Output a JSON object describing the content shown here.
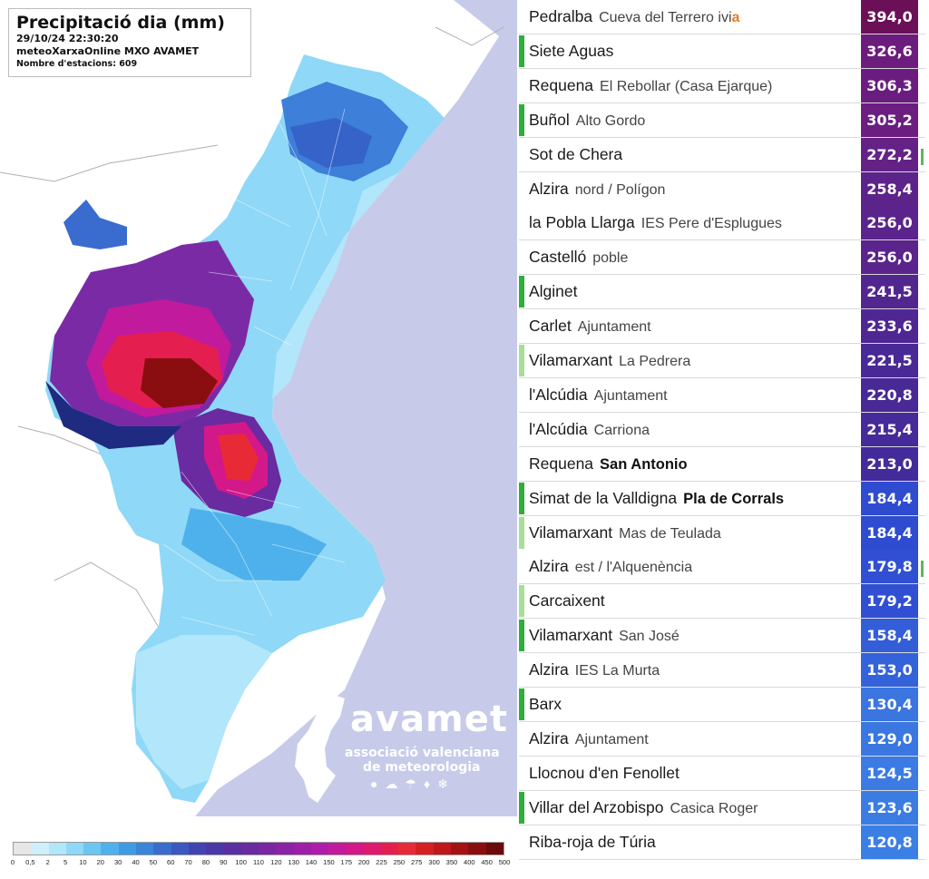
{
  "map": {
    "title": "Precipitació dia (mm)",
    "datetime": "29/10/24 22:30:20",
    "source": "meteoXarxaOnline MXO AVAMET",
    "stations": "Nombre d'estacions: 609",
    "logo": {
      "name": "avamet",
      "line1": "associació valenciana",
      "line2": "de meteorologia"
    },
    "legend": {
      "labels": [
        "0",
        "0,5",
        "2",
        "5",
        "10",
        "20",
        "30",
        "40",
        "50",
        "60",
        "70",
        "80",
        "90",
        "100",
        "110",
        "120",
        "130",
        "140",
        "150",
        "175",
        "200",
        "225",
        "250",
        "275",
        "300",
        "350",
        "400",
        "450",
        "500"
      ],
      "colors": [
        "#e6e6e6",
        "#cfeffb",
        "#b2e6fa",
        "#8fd8f7",
        "#6cc6f2",
        "#4eb1ec",
        "#3d9be4",
        "#3a84da",
        "#3a6ccf",
        "#3b57c2",
        "#4044b2",
        "#4b37a8",
        "#5a2fa2",
        "#6a2aa0",
        "#7b26a3",
        "#8c22a5",
        "#9d1ea8",
        "#b01caa",
        "#c21a9c",
        "#d3188a",
        "#df1a6e",
        "#e41f4f",
        "#e82a36",
        "#d71f23",
        "#c0171a",
        "#a51214",
        "#8a0e10",
        "#6c0a0b"
      ]
    }
  },
  "ranking": [
    {
      "place": "Pedralba",
      "sub": "Cueva del Terrero ivi",
      "sub_accent": "a",
      "value": "394,0",
      "color": "#6b0f57",
      "side": "#ffffff",
      "tick": false,
      "bold": false
    },
    {
      "place": "Siete Aguas",
      "sub": "",
      "sub_accent": "",
      "value": "326,6",
      "color": "#6c1c7c",
      "side": "#2fae3a",
      "tick": false,
      "bold": false
    },
    {
      "place": "Requena",
      "sub": "El Rebollar (Casa Ejarque)",
      "sub_accent": "",
      "value": "306,3",
      "color": "#6b1d7f",
      "side": "#ffffff",
      "tick": false,
      "bold": false
    },
    {
      "place": "Buñol",
      "sub": "Alto Gordo",
      "sub_accent": "",
      "value": "305,2",
      "color": "#6b1d80",
      "side": "#2fae3a",
      "tick": false,
      "bold": false
    },
    {
      "place": "Sot de Chera",
      "sub": "",
      "sub_accent": "",
      "value": "272,2",
      "color": "#642287",
      "side": "#ffffff",
      "tick": true,
      "bold": false
    },
    {
      "place": "Alzira",
      "sub": "nord / Polígon",
      "sub_accent": "",
      "value": "258,4",
      "color": "#5c238a",
      "side": "#ffffff",
      "tick": false,
      "bold": false
    },
    {
      "place": "la Pobla Llarga",
      "sub": "IES Pere d'Esplugues",
      "sub_accent": "",
      "value": "256,0",
      "color": "#5a248c",
      "side": "#ffffff",
      "tick": false,
      "bold": false
    },
    {
      "place": "Castelló",
      "sub": "poble",
      "sub_accent": "",
      "value": "256,0",
      "color": "#5a248c",
      "side": "#ffffff",
      "tick": false,
      "bold": false
    },
    {
      "place": "Alginet",
      "sub": "",
      "sub_accent": "",
      "value": "241,5",
      "color": "#52268f",
      "side": "#2fae3a",
      "tick": false,
      "bold": false
    },
    {
      "place": "Carlet",
      "sub": "Ajuntament",
      "sub_accent": "",
      "value": "233,6",
      "color": "#4e2792",
      "side": "#ffffff",
      "tick": false,
      "bold": false
    },
    {
      "place": "Vilamarxant",
      "sub": "La Pedrera",
      "sub_accent": "",
      "value": "221,5",
      "color": "#482996",
      "side": "#a8dd9a",
      "tick": false,
      "bold": false
    },
    {
      "place": "l'Alcúdia",
      "sub": "Ajuntament",
      "sub_accent": "",
      "value": "220,8",
      "color": "#482996",
      "side": "#ffffff",
      "tick": false,
      "bold": false
    },
    {
      "place": "l'Alcúdia",
      "sub": "Carriona",
      "sub_accent": "",
      "value": "215,4",
      "color": "#452a99",
      "side": "#ffffff",
      "tick": false,
      "bold": false
    },
    {
      "place": "Requena",
      "sub": "San Antonio",
      "sub_accent": "",
      "value": "213,0",
      "color": "#432b9b",
      "side": "#ffffff",
      "tick": false,
      "bold": true
    },
    {
      "place": "Simat de la Valldigna",
      "sub": "Pla de Corrals",
      "sub_accent": "",
      "value": "184,4",
      "color": "#2f4bd0",
      "side": "#2fae3a",
      "tick": false,
      "bold": true
    },
    {
      "place": "Vilamarxant",
      "sub": "Mas de Teulada",
      "sub_accent": "",
      "value": "184,4",
      "color": "#2f4bd0",
      "side": "#a8dd9a",
      "tick": false,
      "bold": false
    },
    {
      "place": "Alzira",
      "sub": "est / l'Alquenència",
      "sub_accent": "",
      "value": "179,8",
      "color": "#304fd3",
      "side": "#ffffff",
      "tick": true,
      "bold": false
    },
    {
      "place": "Carcaixent",
      "sub": "",
      "sub_accent": "",
      "value": "179,2",
      "color": "#304fd3",
      "side": "#a8dd9a",
      "tick": false,
      "bold": false
    },
    {
      "place": "Vilamarxant",
      "sub": "San José",
      "sub_accent": "",
      "value": "158,4",
      "color": "#335ed8",
      "side": "#2fae3a",
      "tick": false,
      "bold": false
    },
    {
      "place": "Alzira",
      "sub": "IES La Murta",
      "sub_accent": "",
      "value": "153,0",
      "color": "#3462da",
      "side": "#ffffff",
      "tick": false,
      "bold": false
    },
    {
      "place": "Barx",
      "sub": "",
      "sub_accent": "",
      "value": "130,4",
      "color": "#3a75e0",
      "side": "#2fae3a",
      "tick": false,
      "bold": false
    },
    {
      "place": "Alzira",
      "sub": "Ajuntament",
      "sub_accent": "",
      "value": "129,0",
      "color": "#3a77e1",
      "side": "#ffffff",
      "tick": false,
      "bold": false
    },
    {
      "place": "Llocnou d'en Fenollet",
      "sub": "",
      "sub_accent": "",
      "value": "124,5",
      "color": "#3b7be3",
      "side": "#ffffff",
      "tick": false,
      "bold": false
    },
    {
      "place": "Villar del Arzobispo",
      "sub": "Casica Roger",
      "sub_accent": "",
      "value": "123,6",
      "color": "#3b7ce3",
      "side": "#2fae3a",
      "tick": false,
      "bold": false
    },
    {
      "place": "Riba-roja de Túria",
      "sub": "",
      "sub_accent": "",
      "value": "120,8",
      "color": "#3c7fe4",
      "side": "#ffffff",
      "tick": false,
      "bold": false
    }
  ]
}
